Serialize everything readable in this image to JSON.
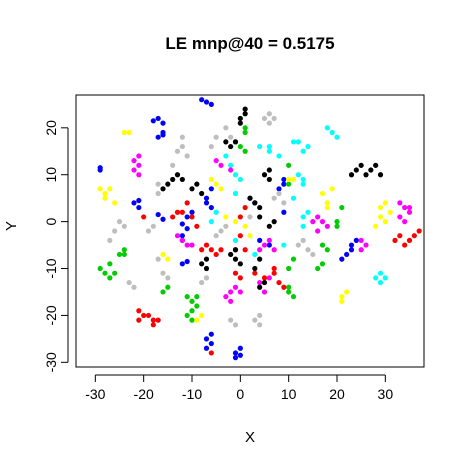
{
  "chart_data": {
    "type": "scatter",
    "title": "LE mnp@40 = 0.5175",
    "xlabel": "X",
    "ylabel": "Y",
    "xlim": [
      -34,
      38
    ],
    "ylim": [
      -31,
      27
    ],
    "xticks": [
      -30,
      -20,
      -10,
      0,
      10,
      20,
      30
    ],
    "yticks": [
      -30,
      -20,
      -10,
      0,
      10,
      20
    ],
    "grid": false,
    "legend": "none",
    "series": [
      {
        "color": "#0000ff",
        "points": [
          [
            -29,
            11
          ],
          [
            -29,
            11.5
          ],
          [
            -17,
            22
          ],
          [
            -18,
            21.5
          ],
          [
            -16,
            21
          ],
          [
            -16,
            19
          ],
          [
            -17,
            18
          ],
          [
            -16,
            18.5
          ],
          [
            -7,
            25.5
          ],
          [
            -8,
            26
          ],
          [
            -6,
            25
          ],
          [
            -22,
            4
          ],
          [
            -21,
            3
          ],
          [
            -21,
            4.5
          ],
          [
            -17,
            1.5
          ],
          [
            -16,
            0.5
          ],
          [
            -12,
            -0.5
          ],
          [
            -10,
            2
          ],
          [
            -11,
            1
          ],
          [
            -7,
            5
          ],
          [
            -6,
            7
          ],
          [
            -7,
            4
          ],
          [
            -6,
            3
          ],
          [
            -12,
            -4
          ],
          [
            -12,
            -3
          ],
          [
            -11,
            -1.5
          ],
          [
            -12,
            -9
          ],
          [
            -11,
            -8.5
          ],
          [
            -7,
            -27
          ],
          [
            -6,
            -26
          ],
          [
            -6,
            -24
          ],
          [
            -7,
            -25
          ],
          [
            -1,
            -28
          ],
          [
            0,
            -27
          ],
          [
            -1,
            -29
          ],
          [
            0,
            -28.5
          ],
          [
            4,
            -4
          ],
          [
            6,
            -5
          ],
          [
            3,
            4
          ],
          [
            2,
            5
          ],
          [
            9,
            9
          ],
          [
            9,
            8
          ],
          [
            8,
            7
          ],
          [
            9,
            2
          ],
          [
            22,
            -7
          ],
          [
            23,
            -6
          ],
          [
            23,
            -5
          ],
          [
            24,
            -4
          ],
          [
            21,
            -8
          ]
        ]
      },
      {
        "color": "#00cc00",
        "points": [
          [
            -29,
            -10
          ],
          [
            -28,
            -11
          ],
          [
            -27,
            -12
          ],
          [
            -27,
            -9
          ],
          [
            -26,
            -11
          ],
          [
            -25,
            -7
          ],
          [
            -24,
            -6
          ],
          [
            -24,
            -7
          ],
          [
            -16,
            -15
          ],
          [
            -15,
            -14
          ],
          [
            -11,
            -16
          ],
          [
            -10,
            -17
          ],
          [
            -10,
            -19
          ],
          [
            -11,
            -20
          ],
          [
            -9,
            -18
          ],
          [
            -9,
            -16
          ],
          [
            -10,
            -21
          ],
          [
            -1,
            17
          ],
          [
            1,
            20
          ],
          [
            1,
            19
          ],
          [
            1,
            15
          ],
          [
            0,
            16
          ],
          [
            10,
            12
          ],
          [
            10,
            8
          ],
          [
            11,
            -8
          ],
          [
            10,
            -10
          ],
          [
            10,
            -15
          ],
          [
            11,
            -16
          ],
          [
            10,
            -14
          ],
          [
            16,
            -10
          ],
          [
            17,
            -9
          ],
          [
            18,
            -6
          ],
          [
            17,
            -5
          ],
          [
            21,
            3
          ],
          [
            20,
            0
          ],
          [
            20,
            -1
          ]
        ]
      },
      {
        "color": "#00ffff",
        "points": [
          [
            -3,
            14
          ],
          [
            -2,
            12
          ],
          [
            -1,
            10
          ],
          [
            0,
            9
          ],
          [
            -1,
            6
          ],
          [
            4,
            16
          ],
          [
            6,
            15
          ],
          [
            6,
            16
          ],
          [
            8,
            14
          ],
          [
            11,
            17
          ],
          [
            12,
            17
          ],
          [
            13,
            15
          ],
          [
            14,
            16
          ],
          [
            18,
            20
          ],
          [
            19,
            19
          ],
          [
            20,
            18
          ],
          [
            12,
            10
          ],
          [
            13,
            9
          ],
          [
            13,
            8
          ],
          [
            11,
            5
          ],
          [
            9,
            -5
          ],
          [
            13,
            1
          ],
          [
            14,
            2
          ],
          [
            13,
            -1
          ],
          [
            -5,
            2
          ],
          [
            -6,
            0
          ],
          [
            -1,
            -4
          ],
          [
            3,
            -7
          ],
          [
            28,
            -12
          ],
          [
            29,
            -13
          ],
          [
            29,
            -11
          ],
          [
            30,
            -12
          ]
        ]
      },
      {
        "color": "#ff00ff",
        "points": [
          [
            -22,
            13
          ],
          [
            -21,
            14
          ],
          [
            -21,
            12
          ],
          [
            -22,
            11
          ],
          [
            -21,
            10
          ],
          [
            -5,
            13
          ],
          [
            -4,
            12
          ],
          [
            -2,
            11
          ],
          [
            -13,
            -3
          ],
          [
            -12,
            -4
          ],
          [
            -10,
            -5
          ],
          [
            -11,
            -5
          ],
          [
            -1,
            -14
          ],
          [
            -2,
            -15
          ],
          [
            -3,
            -16
          ],
          [
            -2,
            -17
          ],
          [
            0,
            -15
          ],
          [
            4,
            -6
          ],
          [
            5,
            -5
          ],
          [
            6,
            -4
          ],
          [
            7,
            -6
          ],
          [
            4,
            -13
          ],
          [
            5,
            -15
          ],
          [
            6,
            -12
          ],
          [
            16,
            -2
          ],
          [
            15,
            0
          ],
          [
            16,
            1
          ],
          [
            17,
            0
          ],
          [
            18,
            -1
          ],
          [
            33,
            4
          ],
          [
            34,
            3
          ],
          [
            35,
            2
          ],
          [
            33,
            1
          ],
          [
            34,
            0
          ],
          [
            35,
            3
          ],
          [
            25,
            -4
          ],
          [
            25,
            -6
          ],
          [
            26,
            -5
          ]
        ]
      },
      {
        "color": "#ff0000",
        "points": [
          [
            -21,
            -19
          ],
          [
            -21,
            -21
          ],
          [
            -20,
            -20
          ],
          [
            -19,
            -20
          ],
          [
            -18,
            -21
          ],
          [
            -18,
            -22
          ],
          [
            -17,
            -21
          ],
          [
            -20,
            1
          ],
          [
            -14,
            1
          ],
          [
            -13,
            2
          ],
          [
            -12,
            2
          ],
          [
            -11,
            4
          ],
          [
            -10,
            1
          ],
          [
            -9,
            -1
          ],
          [
            -8,
            -6
          ],
          [
            -7,
            -5
          ],
          [
            -6,
            -6
          ],
          [
            -5,
            -7
          ],
          [
            -4,
            -6
          ],
          [
            -1,
            -6
          ],
          [
            0,
            -3
          ],
          [
            1,
            -6
          ],
          [
            0,
            -12
          ],
          [
            -1,
            -11
          ],
          [
            3,
            -11
          ],
          [
            5,
            -12
          ],
          [
            7,
            -11
          ],
          [
            7,
            -10
          ],
          [
            8,
            -13
          ],
          [
            9,
            -14
          ],
          [
            -6,
            -28
          ],
          [
            0,
            1
          ],
          [
            1,
            3
          ],
          [
            32,
            -4
          ],
          [
            33,
            -3
          ],
          [
            34,
            -5
          ],
          [
            36,
            -3
          ],
          [
            35,
            -4
          ],
          [
            37,
            -2
          ]
        ]
      },
      {
        "color": "#000000",
        "points": [
          [
            -16,
            7
          ],
          [
            -15,
            8
          ],
          [
            -14,
            9
          ],
          [
            -13,
            10
          ],
          [
            -12,
            9
          ],
          [
            -10,
            7
          ],
          [
            -9,
            8
          ],
          [
            -8,
            6
          ],
          [
            -3,
            17
          ],
          [
            -2,
            16
          ],
          [
            -1,
            17
          ],
          [
            0,
            22
          ],
          [
            1,
            24
          ],
          [
            0,
            21
          ],
          [
            1,
            23
          ],
          [
            5,
            10
          ],
          [
            6,
            9
          ],
          [
            6,
            11
          ],
          [
            2,
            5
          ],
          [
            3,
            4
          ],
          [
            4,
            3
          ],
          [
            4,
            1
          ],
          [
            6,
            -1
          ],
          [
            7,
            0
          ],
          [
            -2,
            -7
          ],
          [
            -1,
            -8
          ],
          [
            0,
            -9
          ],
          [
            -1,
            -6
          ],
          [
            3,
            -10
          ],
          [
            4,
            -8
          ],
          [
            4,
            -14
          ],
          [
            5,
            -13
          ],
          [
            23,
            10
          ],
          [
            24,
            11
          ],
          [
            25,
            12
          ],
          [
            26,
            10
          ],
          [
            27,
            11
          ],
          [
            28,
            12
          ],
          [
            29,
            10
          ],
          [
            -8,
            -9
          ],
          [
            -7,
            -10
          ],
          [
            -7,
            -8
          ]
        ]
      },
      {
        "color": "#ffff00",
        "points": [
          [
            -29,
            7
          ],
          [
            -28,
            5
          ],
          [
            -28,
            6
          ],
          [
            -27,
            7
          ],
          [
            -26,
            4
          ],
          [
            -23,
            19
          ],
          [
            -24,
            19
          ],
          [
            -16,
            -7
          ],
          [
            -15,
            -8
          ],
          [
            -9,
            -21
          ],
          [
            -8,
            -20
          ],
          [
            -5,
            8
          ],
          [
            -6,
            9
          ],
          [
            -4,
            7
          ],
          [
            -3,
            1
          ],
          [
            -1,
            0
          ],
          [
            2,
            -3
          ],
          [
            1,
            -1
          ],
          [
            10,
            9
          ],
          [
            11,
            9
          ],
          [
            17,
            6
          ],
          [
            18,
            4
          ],
          [
            18,
            3
          ],
          [
            19,
            7
          ],
          [
            21,
            -16
          ],
          [
            21,
            -17
          ],
          [
            22,
            -15
          ],
          [
            28,
            -1
          ],
          [
            29,
            1
          ],
          [
            30,
            0
          ],
          [
            29,
            3
          ],
          [
            30,
            4
          ],
          [
            31,
            2
          ]
        ]
      },
      {
        "color": "#bebebe",
        "points": [
          [
            -27,
            -4
          ],
          [
            -26,
            -2
          ],
          [
            -25,
            0
          ],
          [
            -24,
            -1
          ],
          [
            -23,
            -13
          ],
          [
            -22,
            -14
          ],
          [
            -19,
            -2
          ],
          [
            -18,
            -1
          ],
          [
            -17,
            6
          ],
          [
            -17,
            8
          ],
          [
            -14,
            12
          ],
          [
            -13,
            15
          ],
          [
            -12,
            16
          ],
          [
            -12,
            18
          ],
          [
            -11,
            14
          ],
          [
            -5,
            18
          ],
          [
            -6,
            16
          ],
          [
            -3,
            20
          ],
          [
            -2,
            18
          ],
          [
            5,
            22
          ],
          [
            6,
            21
          ],
          [
            6,
            23
          ],
          [
            7,
            22
          ],
          [
            -16,
            -11
          ],
          [
            -15,
            -12
          ],
          [
            -17,
            -8
          ],
          [
            -2,
            -21
          ],
          [
            -1,
            -22
          ],
          [
            3,
            -21
          ],
          [
            4,
            -20
          ],
          [
            4,
            -22
          ],
          [
            -5,
            -3
          ],
          [
            -4,
            -2
          ],
          [
            -3,
            -1
          ],
          [
            2,
            1
          ],
          [
            7,
            5
          ],
          [
            8,
            6
          ],
          [
            9,
            4
          ],
          [
            12,
            -5
          ],
          [
            13,
            -4
          ],
          [
            14,
            -6
          ],
          [
            15,
            -7
          ],
          [
            -8,
            -13
          ],
          [
            -7,
            -12
          ]
        ]
      }
    ]
  }
}
